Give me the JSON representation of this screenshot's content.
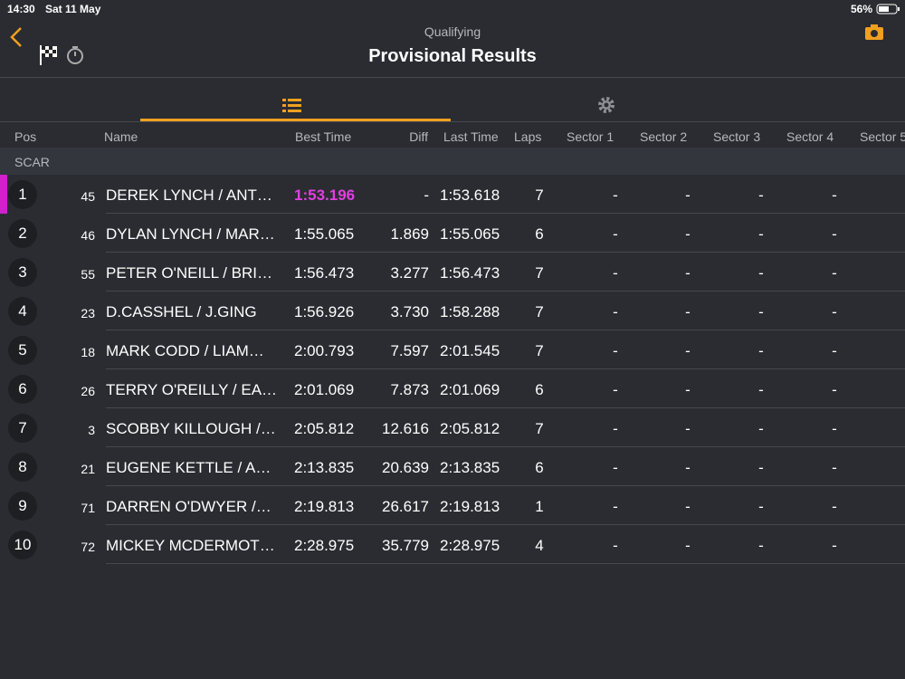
{
  "status": {
    "time": "14:30",
    "date": "Sat 11 May",
    "battery": "56%"
  },
  "header": {
    "subtitle": "Qualifying",
    "title": "Provisional Results"
  },
  "table": {
    "columns": [
      "Pos",
      "Name",
      "Best Time",
      "Diff",
      "Last Time",
      "Laps",
      "Sector 1",
      "Sector 2",
      "Sector 3",
      "Sector 4",
      "Sector 5"
    ],
    "group": "SCAR",
    "rows": [
      [
        "1",
        "45",
        "DEREK LYNCH / ANT…",
        "1:53.196",
        "-",
        "1:53.618",
        "7",
        "-",
        "-",
        "-",
        "-"
      ],
      [
        "2",
        "46",
        "DYLAN LYNCH / MAR…",
        "1:55.065",
        "1.869",
        "1:55.065",
        "6",
        "-",
        "-",
        "-",
        "-"
      ],
      [
        "3",
        "55",
        "PETER O'NEILL / BRI…",
        "1:56.473",
        "3.277",
        "1:56.473",
        "7",
        "-",
        "-",
        "-",
        "-"
      ],
      [
        "4",
        "23",
        "D.CASSHEL /  J.GING",
        "1:56.926",
        "3.730",
        "1:58.288",
        "7",
        "-",
        "-",
        "-",
        "-"
      ],
      [
        "5",
        "18",
        "MARK CODD / LIAM…",
        "2:00.793",
        "7.597",
        "2:01.545",
        "7",
        "-",
        "-",
        "-",
        "-"
      ],
      [
        "6",
        "26",
        "TERRY O'REILLY / EA…",
        "2:01.069",
        "7.873",
        "2:01.069",
        "6",
        "-",
        "-",
        "-",
        "-"
      ],
      [
        "7",
        "3",
        "SCOBBY KILLOUGH /…",
        "2:05.812",
        "12.616",
        "2:05.812",
        "7",
        "-",
        "-",
        "-",
        "-"
      ],
      [
        "8",
        "21",
        "EUGENE KETTLE / A…",
        "2:13.835",
        "20.639",
        "2:13.835",
        "6",
        "-",
        "-",
        "-",
        "-"
      ],
      [
        "9",
        "71",
        "DARREN O'DWYER /…",
        "2:19.813",
        "26.617",
        "2:19.813",
        "1",
        "-",
        "-",
        "-",
        "-"
      ],
      [
        "10",
        "72",
        "MICKEY MCDERMOT…",
        "2:28.975",
        "35.779",
        "2:28.975",
        "4",
        "-",
        "-",
        "-",
        "-"
      ]
    ]
  }
}
